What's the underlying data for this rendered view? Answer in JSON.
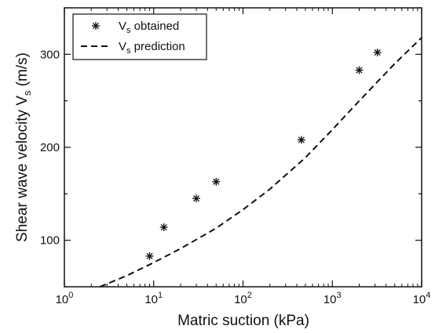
{
  "chart_data": {
    "type": "scatter",
    "title": "",
    "xlabel": "Matric suction (kPa)",
    "ylabel": "Shear wave velocity V",
    "ylabel_subscript": "s",
    "ylabel_unit": "(m/s)",
    "x_scale": "log",
    "xlim": [
      1,
      10000
    ],
    "ylim": [
      50,
      350
    ],
    "x_ticks": [
      {
        "value": 1,
        "base": "10",
        "exp": "0"
      },
      {
        "value": 10,
        "base": "10",
        "exp": "1"
      },
      {
        "value": 100,
        "base": "10",
        "exp": "2"
      },
      {
        "value": 1000,
        "base": "10",
        "exp": "3"
      },
      {
        "value": 10000,
        "base": "10",
        "exp": "4"
      }
    ],
    "y_ticks": [
      {
        "value": 100,
        "label": "100"
      },
      {
        "value": 200,
        "label": "200"
      },
      {
        "value": 300,
        "label": "300"
      }
    ],
    "grid": false,
    "legend_position": "top-left",
    "series": [
      {
        "name": "V",
        "name_subscript": "s",
        "name_suffix": " obtained",
        "type": "scatter",
        "marker": "asterisk",
        "color": "#111111",
        "x": [
          9,
          13,
          30,
          50,
          450,
          2000,
          3200
        ],
        "y": [
          83,
          114,
          145,
          163,
          208,
          283,
          302
        ]
      },
      {
        "name": "V",
        "name_subscript": "s",
        "name_suffix": " prediction",
        "type": "line",
        "line_style": "dashed",
        "color": "#111111",
        "x": [
          2.5,
          5,
          10,
          20,
          50,
          100,
          200,
          500,
          1000,
          2000,
          5000,
          10000
        ],
        "y": [
          50,
          62,
          76,
          91,
          113,
          133,
          155,
          189,
          219,
          250,
          290,
          318
        ]
      }
    ]
  }
}
